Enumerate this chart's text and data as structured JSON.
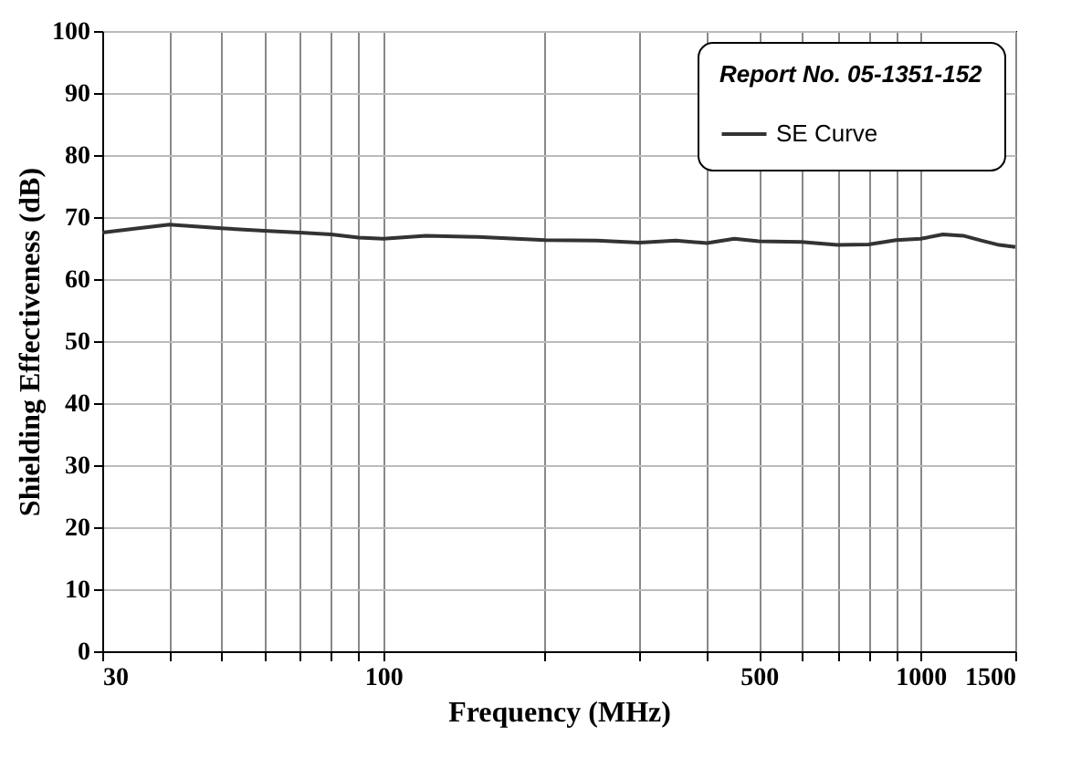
{
  "chart_data": {
    "type": "line",
    "xlabel": "Frequency (MHz)",
    "ylabel": "Shielding Effectiveness (dB)",
    "legend_title": "Report No. 05-1351-152",
    "legend": "top right",
    "grid": true,
    "log": "x",
    "xlim": [
      30,
      1500
    ],
    "xticks": [
      30,
      {
        "value": 40,
        "label": null
      },
      {
        "value": 50,
        "label": null
      },
      {
        "value": 60,
        "label": null
      },
      {
        "value": 70,
        "label": null
      },
      {
        "value": 80,
        "label": null
      },
      {
        "value": 90,
        "label": null
      },
      100,
      {
        "value": 200,
        "label": null
      },
      {
        "value": 300,
        "label": null
      },
      {
        "value": 400,
        "label": null
      },
      500,
      {
        "value": 600,
        "label": null
      },
      {
        "value": 700,
        "label": null
      },
      {
        "value": 800,
        "label": null
      },
      {
        "value": 900,
        "label": null
      },
      1000,
      1500
    ],
    "ylim": [
      0,
      100
    ],
    "yticks": [
      0,
      10,
      20,
      30,
      40,
      50,
      60,
      70,
      80,
      90,
      100
    ],
    "x": [
      30,
      35,
      40,
      50,
      60,
      70,
      80,
      90,
      100,
      120,
      150,
      200,
      250,
      300,
      350,
      400,
      450,
      500,
      600,
      700,
      800,
      900,
      1000,
      1100,
      1200,
      1300,
      1400,
      1500
    ],
    "series": [
      {
        "name": "SE Curve",
        "color": "#333333",
        "values": [
          67.5,
          68.2,
          68.8,
          68.2,
          67.8,
          67.5,
          67.2,
          66.7,
          66.5,
          67.0,
          66.8,
          66.3,
          66.2,
          65.9,
          66.2,
          65.8,
          66.5,
          66.1,
          66.0,
          65.5,
          65.6,
          66.3,
          66.5,
          67.2,
          67.0,
          66.2,
          65.5,
          65.2
        ]
      }
    ]
  }
}
